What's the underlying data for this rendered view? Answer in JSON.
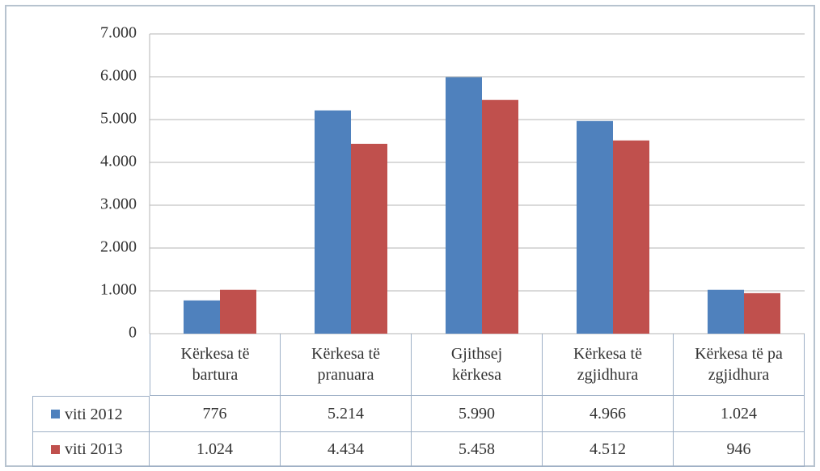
{
  "chart_data": {
    "type": "bar",
    "categories": [
      "Kërkesa të bartura",
      "Kërkesa të pranuara",
      "Gjithsej kërkesa",
      "Kërkesa të zgjidhura",
      "Kërkesa të pa zgjidhura"
    ],
    "series": [
      {
        "name": "viti 2012",
        "color": "#4f81bd",
        "values": [
          776,
          5214,
          5990,
          4966,
          1024
        ],
        "value_labels": [
          "776",
          "5.214",
          "5.990",
          "4.966",
          "1.024"
        ]
      },
      {
        "name": "viti 2013",
        "color": "#c0504d",
        "values": [
          1024,
          4434,
          5458,
          4512,
          946
        ],
        "value_labels": [
          "1.024",
          "4.434",
          "5.458",
          "4.512",
          "946"
        ]
      }
    ],
    "ylim": [
      0,
      7000
    ],
    "yticks": [
      0,
      {
        "value": 1000,
        "label": "1.000"
      },
      {
        "value": 2000,
        "label": "2.000"
      },
      {
        "value": 3000,
        "label": "3.000"
      },
      {
        "value": 4000,
        "label": "4.000"
      },
      {
        "value": 5000,
        "label": "5.000"
      },
      {
        "value": 6000,
        "label": "6.000"
      },
      {
        "value": 7000,
        "label": "7.000"
      }
    ],
    "grid": true
  }
}
